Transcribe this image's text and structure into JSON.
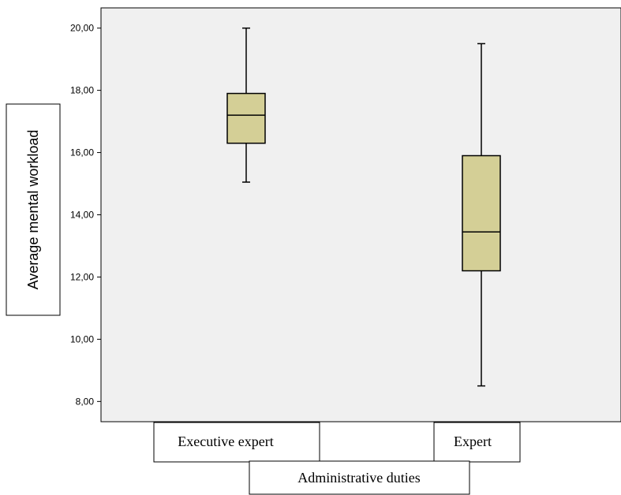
{
  "chart_data": {
    "type": "boxplot",
    "xlabel": "Administrative duties",
    "ylabel": "Average mental workload",
    "ylim": [
      7.35,
      20.65
    ],
    "y_ticks": [
      8,
      10,
      12,
      14,
      16,
      18,
      20
    ],
    "y_tick_labels": [
      "8,00",
      "10,00",
      "12,00",
      "14,00",
      "16,00",
      "18,00",
      "20,00"
    ],
    "grid": false,
    "categories": [
      "Executive expert",
      "Expert"
    ],
    "boxes": [
      {
        "category": "Executive expert",
        "min": 15.05,
        "q1": 16.3,
        "median": 17.2,
        "q3": 17.9,
        "max": 20.0
      },
      {
        "category": "Expert",
        "min": 8.5,
        "q1": 12.2,
        "median": 13.45,
        "q3": 15.9,
        "max": 19.5
      }
    ],
    "colors": {
      "plot_background": "#f0f0f0",
      "box_fill": "#d4cf96",
      "stroke": "#000000"
    }
  }
}
